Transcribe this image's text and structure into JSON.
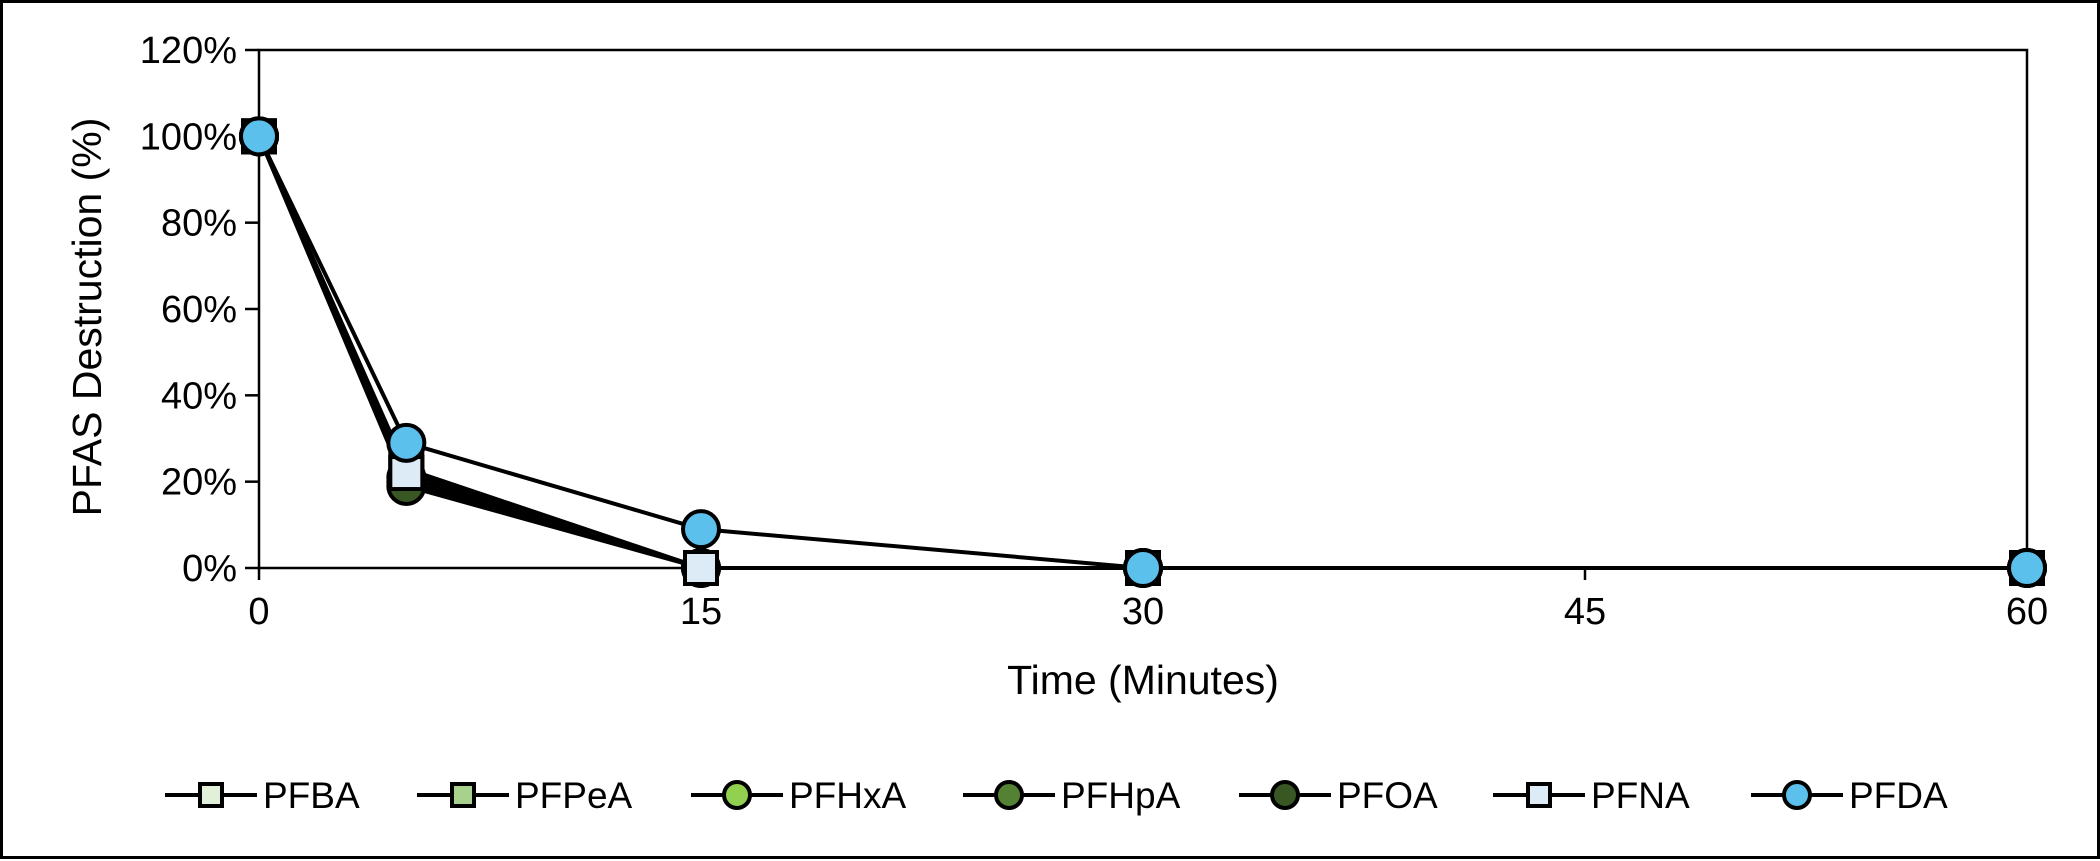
{
  "chart_data": {
    "type": "line",
    "title": "",
    "xlabel": "Time (Minutes)",
    "ylabel": "PFAS Destruction (%)",
    "x": [
      0,
      5,
      15,
      30,
      60
    ],
    "xlim": [
      0,
      60
    ],
    "xticks": [
      0,
      15,
      30,
      45,
      60
    ],
    "xtick_labels": [
      "0",
      "15",
      "30",
      "45",
      "60"
    ],
    "ylim": [
      0,
      120
    ],
    "yticks": [
      0,
      20,
      40,
      60,
      80,
      100,
      120
    ],
    "ytick_labels": [
      "0%",
      "20%",
      "40%",
      "60%",
      "80%",
      "100%",
      "120%"
    ],
    "grid": false,
    "legend_position": "bottom",
    "series": [
      {
        "name": "PFBA",
        "marker": "square",
        "color": "#E2F0D9",
        "values": [
          100,
          23,
          0,
          0,
          0
        ]
      },
      {
        "name": "PFPeA",
        "marker": "square",
        "color": "#A9D18E",
        "values": [
          100,
          22,
          0,
          0,
          0
        ]
      },
      {
        "name": "PFHxA",
        "marker": "circle",
        "color": "#92D050",
        "values": [
          100,
          21,
          0,
          0,
          0
        ]
      },
      {
        "name": "PFHpA",
        "marker": "circle",
        "color": "#548235",
        "values": [
          100,
          20,
          0,
          0,
          0
        ]
      },
      {
        "name": "PFOA",
        "marker": "circle",
        "color": "#385723",
        "values": [
          100,
          19,
          0,
          0,
          0
        ]
      },
      {
        "name": "PFNA",
        "marker": "square",
        "color": "#DDEBF7",
        "values": [
          100,
          22,
          0,
          0,
          0
        ]
      },
      {
        "name": "PFDA",
        "marker": "circle",
        "color": "#5BC0EB",
        "values": [
          100,
          29,
          9,
          0,
          0
        ]
      }
    ]
  }
}
